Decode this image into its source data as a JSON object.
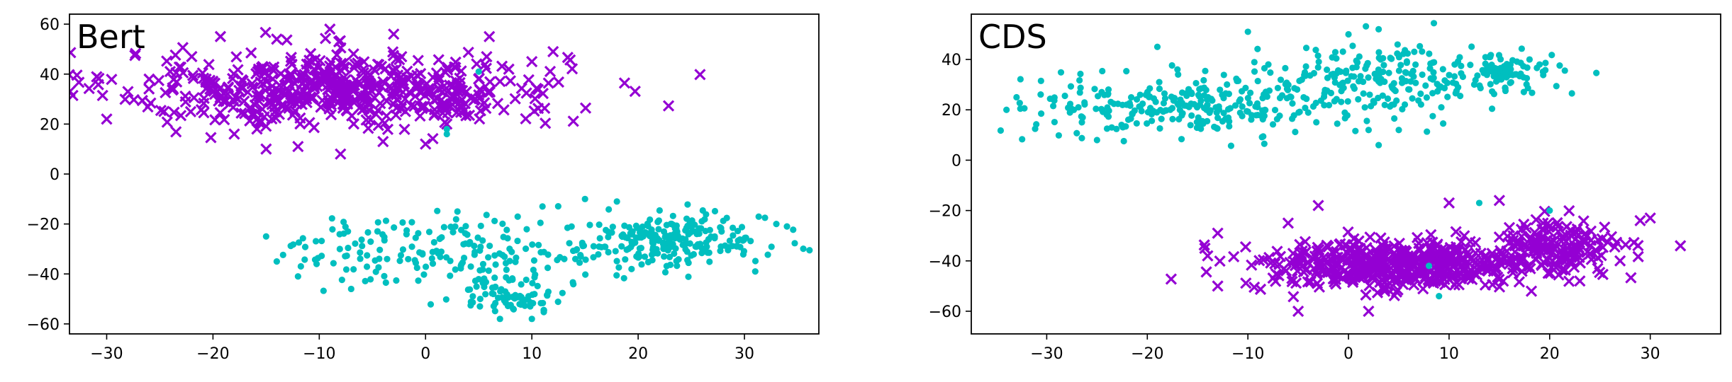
{
  "chart_data": [
    {
      "type": "scatter",
      "title": "Bert",
      "xlabel": "",
      "ylabel": "",
      "xlim": [
        -33.5,
        37.0
      ],
      "ylim": [
        -64.0,
        64.0
      ],
      "x_ticks": [
        -30,
        -20,
        -10,
        0,
        10,
        20,
        30
      ],
      "y_ticks": [
        -60,
        -40,
        -20,
        0,
        20,
        40,
        60
      ],
      "x_tick_labels": [
        "−30",
        "−20",
        "−10",
        "0",
        "10",
        "20",
        "30"
      ],
      "y_tick_labels": [
        "−60",
        "−40",
        "−20",
        "0",
        "20",
        "40",
        "60"
      ],
      "grid": false,
      "series": [
        {
          "marker": "x",
          "color": "#9400d3",
          "clusters": [
            {
              "center": [
                -8,
                34
              ],
              "spread": [
                14,
                10
              ],
              "count": 560
            }
          ],
          "points": [
            [
              -30,
              22
            ],
            [
              -28,
              33
            ],
            [
              -26,
              38
            ],
            [
              -22,
              47
            ],
            [
              -18,
              16
            ],
            [
              -15,
              10
            ],
            [
              -12,
              11
            ],
            [
              -8,
              8
            ],
            [
              -4,
              13
            ],
            [
              0,
              12
            ],
            [
              2,
              20
            ],
            [
              5,
              38
            ],
            [
              6,
              55
            ],
            [
              10,
              45
            ],
            [
              12,
              49
            ],
            [
              -3,
              56
            ],
            [
              -9,
              58
            ],
            [
              -14,
              54
            ]
          ]
        },
        {
          "marker": "o",
          "color": "#00bfbf",
          "clusters": [
            {
              "center": [
                2,
                -30
              ],
              "spread": [
                10,
                9
              ],
              "count": 180
            },
            {
              "center": [
                8,
                -48
              ],
              "spread": [
                3.5,
                5
              ],
              "count": 80
            },
            {
              "center": [
                23,
                -27
              ],
              "spread": [
                6,
                7
              ],
              "count": 230
            }
          ],
          "points": [
            [
              -15,
              -25
            ],
            [
              -14,
              -35
            ],
            [
              -12,
              -41
            ],
            [
              -7,
              -46
            ],
            [
              3,
              -15
            ],
            [
              11,
              -13
            ],
            [
              15,
              -10
            ],
            [
              18,
              -11
            ],
            [
              33,
              -20
            ],
            [
              34,
              -21
            ],
            [
              7,
              -58
            ],
            [
              10,
              -58
            ],
            [
              5,
              41
            ],
            [
              2,
              18
            ],
            [
              2,
              16
            ]
          ]
        }
      ]
    },
    {
      "type": "scatter",
      "title": "CDS",
      "xlabel": "",
      "ylabel": "",
      "xlim": [
        -37.5,
        37.0
      ],
      "ylim": [
        -69.0,
        58.0
      ],
      "x_ticks": [
        -30,
        -20,
        -10,
        0,
        10,
        20,
        30
      ],
      "y_ticks": [
        -60,
        -40,
        -20,
        0,
        20,
        40
      ],
      "x_tick_labels": [
        "−30",
        "−20",
        "−10",
        "0",
        "10",
        "20",
        "30"
      ],
      "y_tick_labels": [
        "−60",
        "−40",
        "−20",
        "0",
        "20",
        "40"
      ],
      "grid": false,
      "series": [
        {
          "marker": "o",
          "color": "#00bfbf",
          "clusters": [
            {
              "center": [
                -16,
                22
              ],
              "spread": [
                10,
                8
              ],
              "count": 260
            },
            {
              "center": [
                4,
                32
              ],
              "spread": [
                9,
                9
              ],
              "count": 210
            },
            {
              "center": [
                15,
                34
              ],
              "spread": [
                3.5,
                5
              ],
              "count": 70
            }
          ],
          "points": [
            [
              -34,
              20
            ],
            [
              -33,
              25
            ],
            [
              -25,
              8
            ],
            [
              -19,
              45
            ],
            [
              -10,
              51
            ],
            [
              3,
              52
            ],
            [
              0,
              50
            ],
            [
              18,
              40
            ],
            [
              19,
              38
            ],
            [
              2,
              12
            ],
            [
              3,
              6
            ],
            [
              5,
              12
            ]
          ]
        },
        {
          "marker": "x",
          "color": "#9400d3",
          "clusters": [
            {
              "center": [
                4,
                -42
              ],
              "spread": [
                9,
                7
              ],
              "count": 460
            },
            {
              "center": [
                20,
                -35
              ],
              "spread": [
                5,
                7
              ],
              "count": 180
            }
          ],
          "points": [
            [
              -14,
              -38
            ],
            [
              -13,
              -50
            ],
            [
              -13,
              -29
            ],
            [
              33,
              -34
            ],
            [
              29,
              -24
            ],
            [
              30,
              -23
            ],
            [
              27,
              -40
            ],
            [
              23,
              -48
            ],
            [
              10,
              -17
            ],
            [
              15,
              -16
            ],
            [
              -6,
              -25
            ],
            [
              -3,
              -18
            ],
            [
              2,
              -60
            ],
            [
              -5,
              -60
            ]
          ]
        },
        {
          "marker": "o",
          "color": "#00bfbf",
          "clusters": [],
          "points": [
            [
              13,
              -17
            ],
            [
              20,
              -20
            ],
            [
              8,
              -42
            ],
            [
              9,
              -54
            ]
          ]
        }
      ]
    }
  ]
}
